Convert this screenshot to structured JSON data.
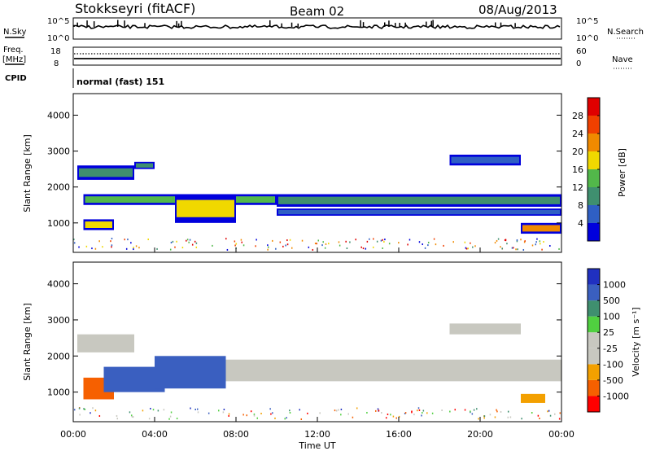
{
  "header": {
    "title": "Stokkseyri (fitACF)",
    "beam": "Beam 02",
    "date": "08/Aug/2013"
  },
  "strips": {
    "nsky_label": "N.Sky",
    "nsky_top": "10^5",
    "nsky_bottom": "10^0",
    "nsearch_label": "N.Search",
    "nsearch_top": "10^5",
    "nsearch_bottom": "10^0",
    "freq_label": "Freq.",
    "freq_unit": "[MHz]",
    "freq_top": "18",
    "freq_bottom": "8",
    "nave_label": "Nave",
    "nave_top": "60",
    "nave_bottom": "0",
    "cpid_label": "CPID",
    "cpid_value": "normal (fast) 151"
  },
  "colors": {
    "power_scale": [
      "#0000dd",
      "#2f5fc4",
      "#3f8f6f",
      "#52b84a",
      "#f0d800",
      "#f08a00",
      "#f04000",
      "#e00000"
    ],
    "velocity_scale": [
      "#ff0000",
      "#f66000",
      "#f3a000",
      "#c8c8c0",
      "#c8c8c0",
      "#50d040",
      "#3f8f6f",
      "#3a5fc0",
      "#2030c0"
    ],
    "ground_scatter": "#c8c8c0"
  },
  "chart_data": [
    {
      "type": "heatmap",
      "name": "power",
      "ylabel": "Slant Range [km]",
      "ylim": [
        180,
        4600
      ],
      "yticks": [
        "1000",
        "2000",
        "3000",
        "4000"
      ],
      "xlim_hours": [
        0,
        24
      ],
      "colorbar_label": "Power [dB]",
      "colorbar_ticks": [
        "4",
        "8",
        "12",
        "16",
        "20",
        "24",
        "28"
      ],
      "colorbar_range": [
        0,
        32
      ],
      "bands": [
        {
          "t0": 0.5,
          "t1": 10.0,
          "r0": 1500,
          "r1": 1800,
          "level": 12
        },
        {
          "t0": 10.0,
          "t1": 24.0,
          "r0": 1450,
          "r1": 1800,
          "level": 10
        },
        {
          "t0": 5.0,
          "t1": 8.0,
          "r0": 1000,
          "r1": 1800,
          "level": 16
        },
        {
          "t0": 0.5,
          "t1": 2.0,
          "r0": 800,
          "r1": 1100,
          "level": 18
        },
        {
          "t0": 0.2,
          "t1": 3.0,
          "r0": 2200,
          "r1": 2600,
          "level": 8
        },
        {
          "t0": 3.0,
          "t1": 4.0,
          "r0": 2500,
          "r1": 2700,
          "level": 8
        },
        {
          "t0": 18.5,
          "t1": 22.0,
          "r0": 2600,
          "r1": 2900,
          "level": 6
        },
        {
          "t0": 22.0,
          "t1": 24.0,
          "r0": 700,
          "r1": 1000,
          "level": 20
        },
        {
          "t0": 10.0,
          "t1": 24.0,
          "r0": 1200,
          "r1": 1400,
          "level": 6
        }
      ]
    },
    {
      "type": "heatmap",
      "name": "velocity",
      "ylabel": "Slant Range [km]",
      "ylim": [
        180,
        4600
      ],
      "yticks": [
        "1000",
        "2000",
        "3000",
        "4000"
      ],
      "xlim_hours": [
        0,
        24
      ],
      "xticks": [
        "00:00",
        "04:00",
        "08:00",
        "12:00",
        "16:00",
        "20:00",
        "00:00"
      ],
      "xlabel": "Time UT",
      "colorbar_label": "Velocity [m s⁻¹]",
      "colorbar_ticks": [
        "1000",
        "500",
        "100",
        "25",
        "-25",
        "-100",
        "-500",
        "-1000"
      ],
      "bands": [
        {
          "t0": 0.5,
          "t1": 2.0,
          "r0": 800,
          "r1": 1400,
          "velocity": -600
        },
        {
          "t0": 1.5,
          "t1": 4.5,
          "r0": 1000,
          "r1": 1700,
          "velocity": 150
        },
        {
          "t0": 4.0,
          "t1": 7.5,
          "r0": 1100,
          "r1": 2000,
          "velocity": 400
        },
        {
          "t0": 7.5,
          "t1": 24.0,
          "r0": 1300,
          "r1": 1900,
          "velocity": 0
        },
        {
          "t0": 0.2,
          "t1": 3.0,
          "r0": 2100,
          "r1": 2600,
          "velocity": 0
        },
        {
          "t0": 18.5,
          "t1": 22.0,
          "r0": 2600,
          "r1": 2900,
          "velocity": 0
        },
        {
          "t0": 22.0,
          "t1": 23.2,
          "r0": 700,
          "r1": 950,
          "velocity": -200
        }
      ]
    }
  ]
}
